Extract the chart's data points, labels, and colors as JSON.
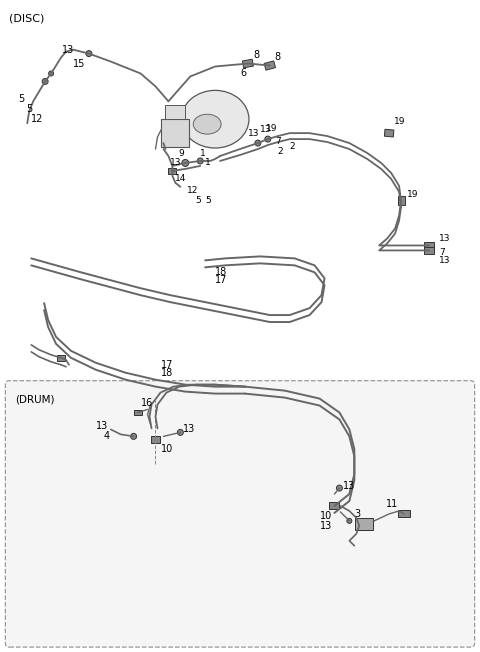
{
  "bg_color": "#ffffff",
  "line_color": "#666666",
  "text_color": "#000000",
  "comp_color": "#888888",
  "comp_edge": "#333333",
  "disc_label": "(DISC)",
  "drum_label": "(DRUM)",
  "figsize": [
    4.8,
    6.52
  ],
  "dpi": 100,
  "lw_main": 1.6,
  "lw_thin": 1.0
}
